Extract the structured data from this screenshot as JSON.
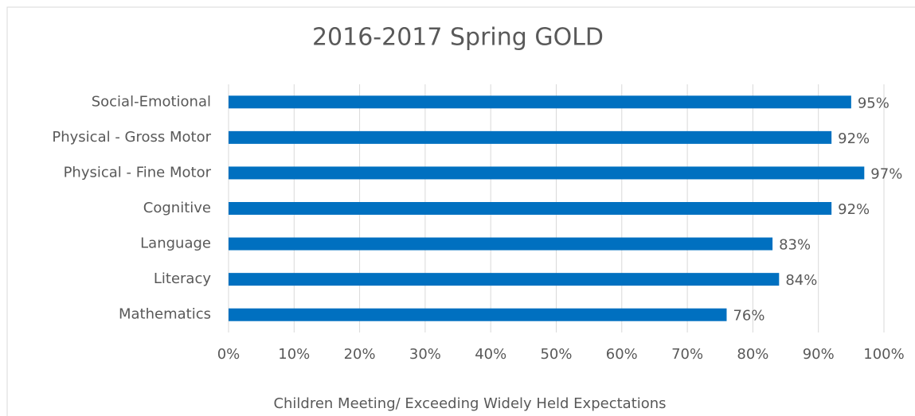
{
  "chart_data": {
    "type": "bar",
    "orientation": "horizontal",
    "title": "2016-2017 Spring GOLD",
    "x_axis_label": "Children Meeting/ Exceeding Widely Held Expectations",
    "categories": [
      "Social-Emotional",
      "Physical - Gross Motor",
      "Physical - Fine Motor",
      "Cognitive",
      "Language",
      "Literacy",
      "Mathematics"
    ],
    "values": [
      95,
      92,
      97,
      92,
      83,
      84,
      76
    ],
    "value_labels": [
      "95%",
      "92%",
      "97%",
      "92%",
      "83%",
      "84%",
      "76%"
    ],
    "color": "#0070c0",
    "xlim": [
      0,
      100
    ],
    "xticks": [
      {
        "value": 0,
        "label": "0%"
      },
      {
        "value": 10,
        "label": "10%"
      },
      {
        "value": 20,
        "label": "20%"
      },
      {
        "value": 30,
        "label": "30%"
      },
      {
        "value": 40,
        "label": "40%"
      },
      {
        "value": 50,
        "label": "50%"
      },
      {
        "value": 60,
        "label": "60%"
      },
      {
        "value": 70,
        "label": "70%"
      },
      {
        "value": 80,
        "label": "80%"
      },
      {
        "value": 90,
        "label": "90%"
      },
      {
        "value": 100,
        "label": "100%"
      }
    ],
    "grid": true
  }
}
